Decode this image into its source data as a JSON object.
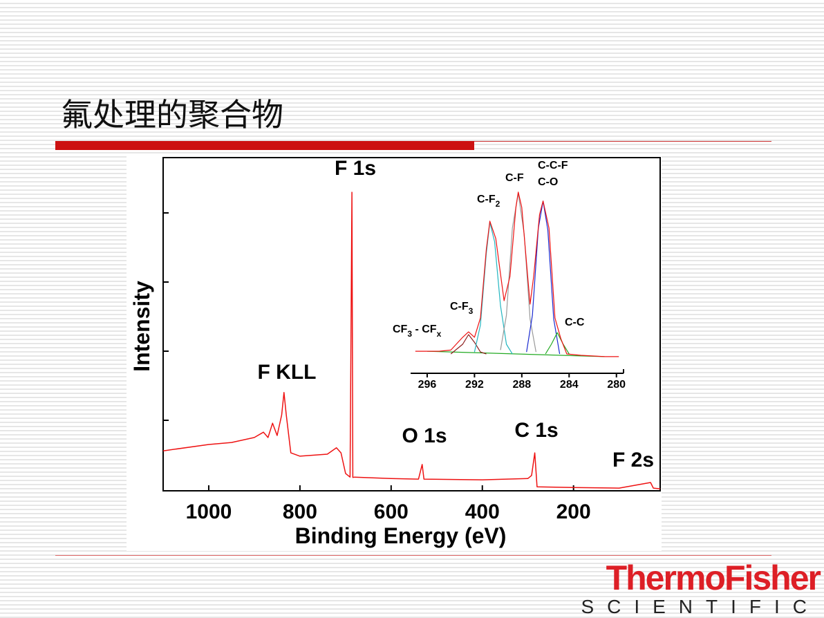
{
  "title": "氟处理的聚合物",
  "logo": {
    "brand": "ThermoFisher",
    "subtitle": "SCIENTIFIC"
  },
  "chart_data": [
    {
      "type": "line",
      "x_label": "Binding Energy (eV)",
      "y_label": "Intensity",
      "xlim": [
        1100,
        10
      ],
      "xticks": [
        1000,
        800,
        600,
        400,
        200
      ],
      "ylim": [
        0,
        100
      ],
      "series": [
        {
          "color": "#ee1111",
          "x": [
            1100,
            1000,
            950,
            900,
            880,
            870,
            860,
            850,
            840,
            835,
            830,
            820,
            800,
            740,
            720,
            710,
            700,
            690,
            686,
            684,
            680,
            600,
            540,
            532,
            528,
            400,
            300,
            292,
            285,
            280,
            200,
            100,
            31,
            25,
            10
          ],
          "values": [
            12,
            13.9,
            14.5,
            16,
            17.6,
            16,
            20.3,
            16.6,
            22.8,
            29.5,
            22.8,
            11.4,
            10.4,
            11,
            12.9,
            11.4,
            5.2,
            4.1,
            89.6,
            4,
            4.1,
            3.7,
            3.5,
            7.9,
            3.5,
            3.3,
            3.7,
            4.6,
            11.4,
            1.2,
            1,
            0.8,
            2.5,
            0.8,
            0.6
          ]
        }
      ],
      "annotations": [
        "F 1s",
        "F KLL",
        "O 1s",
        "C 1s",
        "F 2s"
      ]
    },
    {
      "type": "line",
      "xlim": [
        297.4,
        279.4
      ],
      "xticks": [
        296,
        292,
        288,
        284,
        280
      ],
      "ylim": [
        0,
        100
      ],
      "series": [
        {
          "color": "#22aa22",
          "x": [
            296,
            281
          ],
          "values": [
            11.4,
            8.6
          ]
        },
        {
          "color": "#8b1a1a",
          "x": [
            294,
            293,
            292.5,
            292,
            291.5,
            291
          ],
          "values": [
            10,
            15,
            20,
            16,
            11,
            10
          ]
        },
        {
          "color": "#22b5c0",
          "x": [
            292,
            291.5,
            291,
            290.7,
            290.3,
            289.8,
            289.3,
            288.8
          ],
          "values": [
            11,
            25,
            62,
            78,
            68,
            35,
            15,
            10
          ]
        },
        {
          "color": "#999999",
          "x": [
            289.8,
            289.3,
            288.8,
            288.3,
            287.8,
            287.3,
            286.8
          ],
          "values": [
            12,
            30,
            75,
            93,
            72,
            28,
            11
          ]
        },
        {
          "color": "#1a2ad0",
          "x": [
            287.6,
            287.1,
            286.6,
            286.2,
            285.8,
            285.3,
            284.8
          ],
          "values": [
            11,
            30,
            75,
            89,
            74,
            28,
            10
          ]
        },
        {
          "color": "#22aa22",
          "x": [
            286,
            285.5,
            285,
            284.5,
            284
          ],
          "values": [
            10,
            15,
            21,
            15,
            10
          ]
        },
        {
          "color": "#ee1111",
          "x": [
            297,
            295,
            294,
            293,
            292.5,
            292,
            291.5,
            291,
            290.7,
            290.2,
            289.5,
            289,
            288.5,
            288.3,
            288,
            287.3,
            287,
            286.5,
            286.2,
            285.7,
            285.2,
            284.7,
            284.2,
            283,
            281,
            279.8
          ],
          "values": [
            11.4,
            11.4,
            12,
            18.6,
            21.4,
            18.6,
            28.6,
            64,
            78.6,
            69.6,
            37.5,
            50,
            85.7,
            93.6,
            85.7,
            35.7,
            50,
            82,
            89,
            75,
            28.6,
            17.9,
            10,
            9.3,
            8.6,
            8.6
          ]
        }
      ],
      "annotations": [
        [
          "CF",
          "3",
          " - CF",
          "x"
        ],
        [
          "C-F",
          "3"
        ],
        [
          "C-F",
          "2"
        ],
        [
          "C-F"
        ],
        [
          "C-C-F"
        ],
        [
          "C-O"
        ],
        [
          "C-C"
        ]
      ]
    }
  ]
}
